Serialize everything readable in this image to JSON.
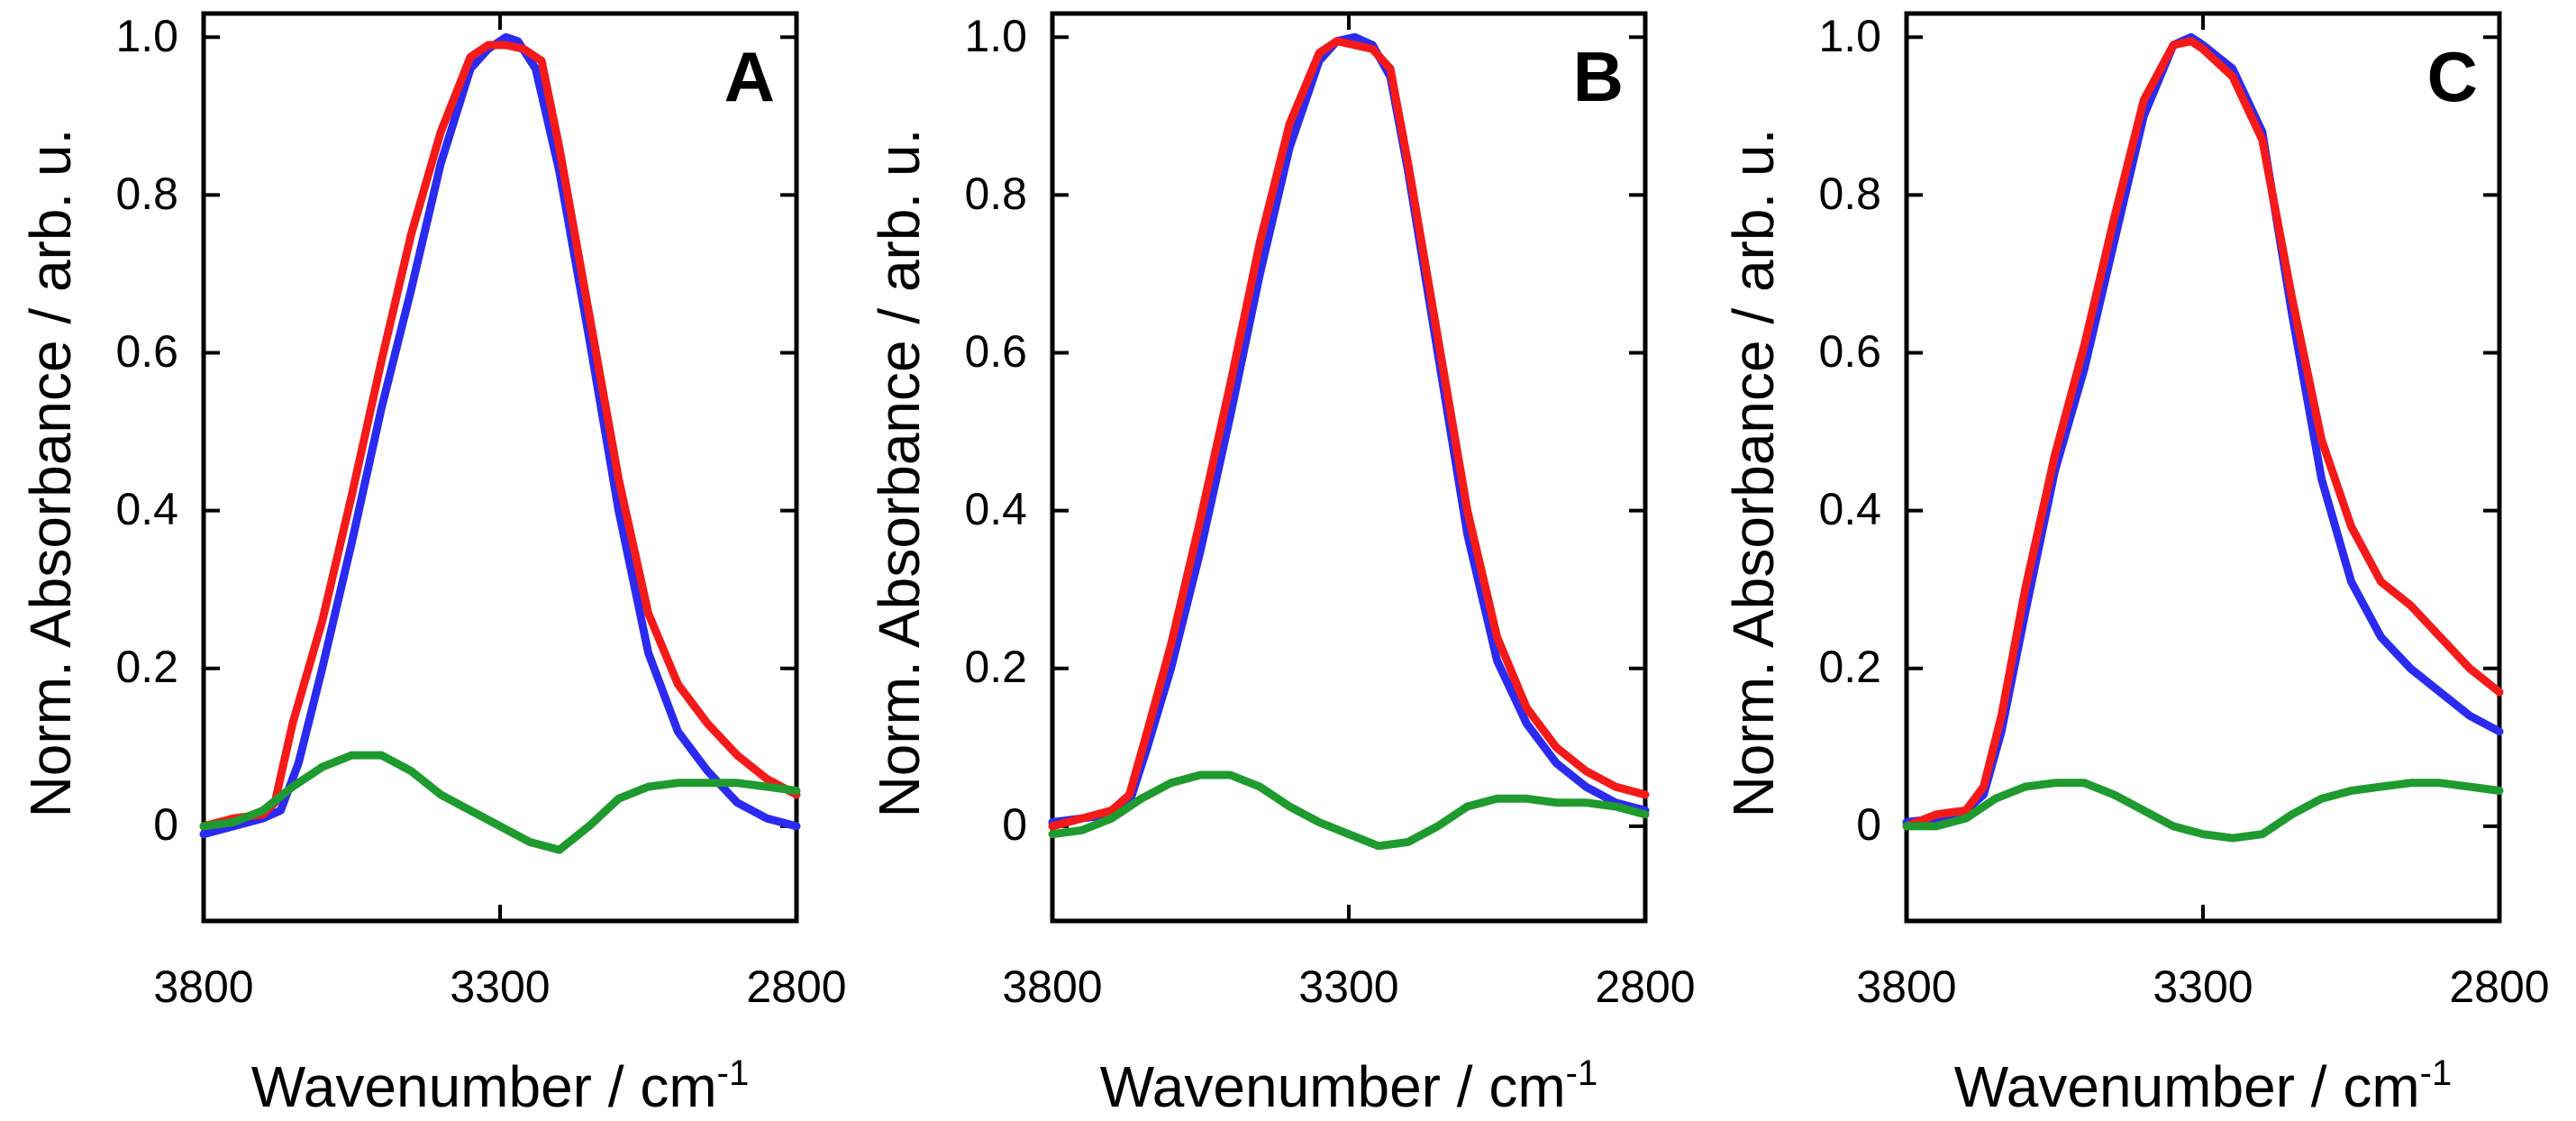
{
  "chart_data": [
    {
      "type": "line",
      "panel_label": "A",
      "xlabel": "Wavenumber / cm",
      "xlabel_superscript": "-1",
      "ylabel": "Norm. Absorbance / arb. u.",
      "xlim": [
        3800,
        2800
      ],
      "ylim": [
        -0.12,
        1.03
      ],
      "xticks": [
        3800,
        3300,
        2800
      ],
      "xtick_labels": [
        "3800",
        "3300",
        "2800"
      ],
      "yticks": [
        0,
        0.2,
        0.4,
        0.6,
        0.8,
        1.0
      ],
      "ytick_labels": [
        "0",
        "0.2",
        "0.4",
        "0.6",
        "0.8",
        "1.0"
      ],
      "grid": false,
      "series": [
        {
          "name": "blue",
          "color": "#2b2bf0",
          "x": [
            3800,
            3750,
            3700,
            3670,
            3640,
            3600,
            3550,
            3500,
            3450,
            3400,
            3350,
            3320,
            3290,
            3270,
            3240,
            3200,
            3150,
            3100,
            3050,
            3000,
            2950,
            2900,
            2850,
            2800
          ],
          "y": [
            -0.01,
            0.0,
            0.01,
            0.02,
            0.08,
            0.2,
            0.36,
            0.53,
            0.68,
            0.84,
            0.96,
            0.985,
            1.0,
            0.995,
            0.96,
            0.83,
            0.62,
            0.4,
            0.22,
            0.12,
            0.07,
            0.03,
            0.01,
            0.0
          ]
        },
        {
          "name": "red",
          "color": "#f51a1a",
          "x": [
            3800,
            3750,
            3700,
            3680,
            3650,
            3600,
            3550,
            3500,
            3450,
            3400,
            3350,
            3320,
            3290,
            3260,
            3230,
            3200,
            3150,
            3100,
            3050,
            3000,
            2950,
            2900,
            2850,
            2800
          ],
          "y": [
            0.0,
            0.01,
            0.015,
            0.03,
            0.13,
            0.26,
            0.42,
            0.59,
            0.75,
            0.88,
            0.975,
            0.99,
            0.99,
            0.985,
            0.97,
            0.86,
            0.65,
            0.44,
            0.27,
            0.18,
            0.13,
            0.09,
            0.06,
            0.04
          ]
        },
        {
          "name": "green",
          "color": "#1e9a2e",
          "x": [
            3800,
            3750,
            3700,
            3650,
            3600,
            3550,
            3500,
            3450,
            3400,
            3350,
            3300,
            3250,
            3200,
            3150,
            3100,
            3050,
            3000,
            2950,
            2900,
            2850,
            2800
          ],
          "y": [
            0.0,
            0.005,
            0.02,
            0.05,
            0.075,
            0.09,
            0.09,
            0.07,
            0.04,
            0.02,
            0.0,
            -0.02,
            -0.03,
            0.0,
            0.035,
            0.05,
            0.055,
            0.055,
            0.055,
            0.05,
            0.045
          ]
        }
      ]
    },
    {
      "type": "line",
      "panel_label": "B",
      "xlabel": "Wavenumber / cm",
      "xlabel_superscript": "-1",
      "ylabel": "Norm. Absorbance / arb. u.",
      "xlim": [
        3800,
        2800
      ],
      "ylim": [
        -0.12,
        1.03
      ],
      "xticks": [
        3800,
        3300,
        2800
      ],
      "xtick_labels": [
        "3800",
        "3300",
        "2800"
      ],
      "yticks": [
        0,
        0.2,
        0.4,
        0.6,
        0.8,
        1.0
      ],
      "ytick_labels": [
        "0",
        "0.2",
        "0.4",
        "0.6",
        "0.8",
        "1.0"
      ],
      "grid": false,
      "series": [
        {
          "name": "blue",
          "color": "#2b2bf0",
          "x": [
            3800,
            3750,
            3700,
            3670,
            3640,
            3600,
            3550,
            3500,
            3450,
            3400,
            3350,
            3320,
            3290,
            3260,
            3230,
            3200,
            3150,
            3100,
            3050,
            3000,
            2950,
            2900,
            2850,
            2800
          ],
          "y": [
            0.005,
            0.01,
            0.015,
            0.03,
            0.1,
            0.2,
            0.35,
            0.52,
            0.7,
            0.86,
            0.97,
            0.995,
            1.0,
            0.99,
            0.95,
            0.83,
            0.6,
            0.37,
            0.21,
            0.13,
            0.08,
            0.05,
            0.03,
            0.02
          ]
        },
        {
          "name": "red",
          "color": "#f51a1a",
          "x": [
            3800,
            3750,
            3700,
            3670,
            3640,
            3600,
            3550,
            3500,
            3450,
            3400,
            3350,
            3320,
            3290,
            3260,
            3230,
            3200,
            3150,
            3100,
            3050,
            3000,
            2950,
            2900,
            2850,
            2800
          ],
          "y": [
            0.0,
            0.01,
            0.02,
            0.04,
            0.12,
            0.23,
            0.39,
            0.56,
            0.74,
            0.89,
            0.98,
            0.995,
            0.99,
            0.985,
            0.96,
            0.84,
            0.62,
            0.4,
            0.24,
            0.15,
            0.1,
            0.07,
            0.05,
            0.04
          ]
        },
        {
          "name": "green",
          "color": "#1e9a2e",
          "x": [
            3800,
            3750,
            3700,
            3650,
            3600,
            3550,
            3500,
            3450,
            3400,
            3350,
            3300,
            3250,
            3200,
            3150,
            3100,
            3050,
            3000,
            2950,
            2900,
            2850,
            2800
          ],
          "y": [
            -0.01,
            -0.005,
            0.01,
            0.035,
            0.055,
            0.065,
            0.065,
            0.05,
            0.025,
            0.005,
            -0.01,
            -0.025,
            -0.02,
            0.0,
            0.025,
            0.035,
            0.035,
            0.03,
            0.03,
            0.025,
            0.015
          ]
        }
      ]
    },
    {
      "type": "line",
      "panel_label": "C",
      "xlabel": "Wavenumber / cm",
      "xlabel_superscript": "-1",
      "ylabel": "Norm. Absorbance / arb. u.",
      "xlim": [
        3800,
        2800
      ],
      "ylim": [
        -0.12,
        1.03
      ],
      "xticks": [
        3800,
        3300,
        2800
      ],
      "xtick_labels": [
        "3800",
        "3300",
        "2800"
      ],
      "yticks": [
        0,
        0.2,
        0.4,
        0.6,
        0.8,
        1.0
      ],
      "ytick_labels": [
        "0",
        "0.2",
        "0.4",
        "0.6",
        "0.8",
        "1.0"
      ],
      "grid": false,
      "series": [
        {
          "name": "blue",
          "color": "#2b2bf0",
          "x": [
            3800,
            3750,
            3700,
            3670,
            3640,
            3600,
            3550,
            3500,
            3450,
            3400,
            3350,
            3320,
            3300,
            3250,
            3200,
            3150,
            3100,
            3050,
            3000,
            2950,
            2900,
            2850,
            2800
          ],
          "y": [
            0.005,
            0.01,
            0.02,
            0.04,
            0.12,
            0.27,
            0.45,
            0.58,
            0.74,
            0.9,
            0.99,
            1.0,
            0.99,
            0.96,
            0.88,
            0.65,
            0.44,
            0.31,
            0.24,
            0.2,
            0.17,
            0.14,
            0.12
          ]
        },
        {
          "name": "red",
          "color": "#f51a1a",
          "x": [
            3800,
            3750,
            3700,
            3670,
            3640,
            3600,
            3550,
            3500,
            3450,
            3400,
            3350,
            3320,
            3300,
            3250,
            3200,
            3150,
            3100,
            3050,
            3000,
            2950,
            2900,
            2850,
            2800
          ],
          "y": [
            0.0,
            0.015,
            0.02,
            0.05,
            0.14,
            0.3,
            0.47,
            0.61,
            0.77,
            0.92,
            0.99,
            0.995,
            0.985,
            0.95,
            0.87,
            0.67,
            0.49,
            0.38,
            0.31,
            0.28,
            0.24,
            0.2,
            0.17
          ]
        },
        {
          "name": "green",
          "color": "#1e9a2e",
          "x": [
            3800,
            3750,
            3700,
            3650,
            3600,
            3550,
            3500,
            3450,
            3400,
            3350,
            3300,
            3250,
            3200,
            3150,
            3100,
            3050,
            3000,
            2950,
            2900,
            2850,
            2800
          ],
          "y": [
            0.0,
            0.0,
            0.01,
            0.035,
            0.05,
            0.055,
            0.055,
            0.04,
            0.02,
            0.0,
            -0.01,
            -0.015,
            -0.01,
            0.015,
            0.035,
            0.045,
            0.05,
            0.055,
            0.055,
            0.05,
            0.045
          ]
        }
      ]
    }
  ]
}
